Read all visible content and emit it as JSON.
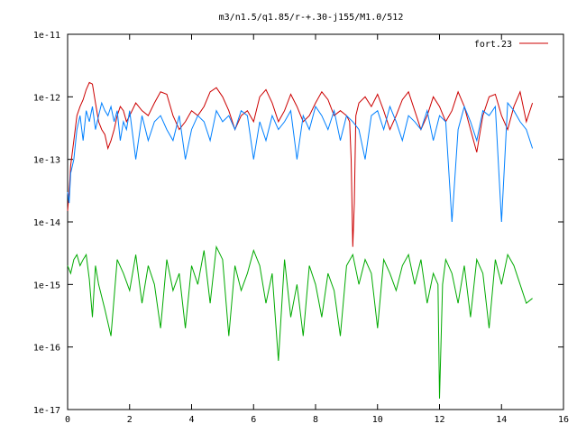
{
  "chart_data": {
    "type": "line",
    "title": "m3/n1.5/q1.85/r-+.30-j155/M1.0/512",
    "xlabel": "",
    "ylabel": "",
    "xlim": [
      0,
      16
    ],
    "ylim": [
      1e-17,
      1e-11
    ],
    "yscale": "log",
    "grid": false,
    "legend_position": "top-right",
    "x_ticks": [
      0,
      2,
      4,
      6,
      8,
      10,
      12,
      14,
      16
    ],
    "x_tick_labels": [
      "0",
      "2",
      "4",
      "6",
      "8",
      "10",
      "12",
      "14",
      "16"
    ],
    "y_ticks": [
      1e-17,
      1e-16,
      1e-15,
      1e-14,
      1e-13,
      1e-12,
      1e-11
    ],
    "y_tick_labels": [
      "1e-17",
      "1e-16",
      "1e-15",
      "1e-14",
      "1e-13",
      "1e-12",
      "1e-11"
    ],
    "series": [
      {
        "name": "fort.23",
        "color": "#cc0000",
        "x": [
          0.0,
          0.05,
          0.1,
          0.2,
          0.3,
          0.4,
          0.5,
          0.6,
          0.7,
          0.8,
          0.9,
          1.0,
          1.1,
          1.2,
          1.3,
          1.4,
          1.5,
          1.6,
          1.7,
          1.8,
          1.9,
          2.0,
          2.2,
          2.4,
          2.6,
          2.8,
          3.0,
          3.2,
          3.4,
          3.6,
          3.8,
          4.0,
          4.2,
          4.4,
          4.6,
          4.8,
          5.0,
          5.2,
          5.4,
          5.6,
          5.8,
          6.0,
          6.2,
          6.4,
          6.6,
          6.8,
          7.0,
          7.2,
          7.4,
          7.6,
          7.8,
          8.0,
          8.2,
          8.4,
          8.6,
          8.8,
          9.0,
          9.1,
          9.15,
          9.2,
          9.25,
          9.3,
          9.4,
          9.6,
          9.8,
          10.0,
          10.2,
          10.4,
          10.6,
          10.8,
          11.0,
          11.2,
          11.4,
          11.6,
          11.8,
          12.0,
          12.2,
          12.4,
          12.6,
          12.8,
          13.0,
          13.2,
          13.4,
          13.6,
          13.8,
          14.0,
          14.2,
          14.4,
          14.6,
          14.8,
          15.0
        ],
        "y": [
          1.5e-14,
          3e-14,
          8e-14,
          2e-13,
          5e-13,
          7e-13,
          9e-13,
          1.3e-12,
          1.7e-12,
          1.6e-12,
          8e-13,
          4e-13,
          3e-13,
          2.5e-13,
          1.5e-13,
          2e-13,
          3e-13,
          5e-13,
          7e-13,
          6e-13,
          4e-13,
          5e-13,
          8e-13,
          6e-13,
          5e-13,
          8e-13,
          1.2e-12,
          1.1e-12,
          5e-13,
          3e-13,
          4e-13,
          6e-13,
          5e-13,
          7e-13,
          1.2e-12,
          1.4e-12,
          1e-12,
          6e-13,
          3e-13,
          5e-13,
          6e-13,
          4e-13,
          1e-12,
          1.3e-12,
          8e-13,
          4e-13,
          6e-13,
          1.1e-12,
          7e-13,
          4e-13,
          5e-13,
          8e-13,
          1.2e-12,
          9e-13,
          5e-13,
          6e-13,
          5e-13,
          4e-13,
          1e-13,
          4e-15,
          2e-14,
          5e-13,
          8e-13,
          1e-12,
          7e-13,
          1.1e-12,
          6e-13,
          3e-13,
          5e-13,
          9e-13,
          1.2e-12,
          6e-13,
          3e-13,
          5e-13,
          1e-12,
          7e-13,
          4e-13,
          6e-13,
          1.2e-12,
          7e-13,
          3e-13,
          1.3e-13,
          5e-13,
          1e-12,
          1.1e-12,
          5e-13,
          3e-13,
          7e-13,
          1.2e-12,
          4e-13,
          8e-13
        ]
      },
      {
        "name": "",
        "color": "#0080ff",
        "x": [
          0.0,
          0.05,
          0.1,
          0.2,
          0.3,
          0.4,
          0.5,
          0.6,
          0.7,
          0.8,
          0.9,
          1.0,
          1.1,
          1.2,
          1.3,
          1.4,
          1.5,
          1.6,
          1.7,
          1.8,
          1.9,
          2.0,
          2.2,
          2.4,
          2.6,
          2.8,
          3.0,
          3.2,
          3.4,
          3.6,
          3.8,
          4.0,
          4.2,
          4.4,
          4.6,
          4.8,
          5.0,
          5.2,
          5.4,
          5.6,
          5.8,
          6.0,
          6.2,
          6.4,
          6.6,
          6.8,
          7.0,
          7.2,
          7.4,
          7.6,
          7.8,
          8.0,
          8.2,
          8.4,
          8.6,
          8.8,
          9.0,
          9.2,
          9.4,
          9.6,
          9.8,
          10.0,
          10.2,
          10.4,
          10.6,
          10.8,
          11.0,
          11.2,
          11.4,
          11.6,
          11.8,
          12.0,
          12.2,
          12.4,
          12.6,
          12.8,
          13.0,
          13.2,
          13.4,
          13.6,
          13.8,
          14.0,
          14.2,
          14.4,
          14.6,
          14.8,
          15.0
        ],
        "y": [
          3e-14,
          2e-14,
          6e-14,
          1e-13,
          3e-13,
          5e-13,
          2e-13,
          6e-13,
          4e-13,
          7e-13,
          3e-13,
          5e-13,
          8e-13,
          6e-13,
          5e-13,
          7e-13,
          4e-13,
          6e-13,
          2e-13,
          4e-13,
          3e-13,
          6e-13,
          1e-13,
          5e-13,
          2e-13,
          4e-13,
          5e-13,
          3e-13,
          2e-13,
          5e-13,
          1e-13,
          3e-13,
          5e-13,
          4e-13,
          2e-13,
          6e-13,
          4e-13,
          5e-13,
          3e-13,
          6e-13,
          5e-13,
          1e-13,
          4e-13,
          2e-13,
          5e-13,
          3e-13,
          4e-13,
          6e-13,
          1e-13,
          5e-13,
          3e-13,
          7e-13,
          5e-13,
          3e-13,
          6e-13,
          2e-13,
          5e-13,
          4e-13,
          3e-13,
          1e-13,
          5e-13,
          6e-13,
          3e-13,
          7e-13,
          4e-13,
          2e-13,
          5e-13,
          4e-13,
          3e-13,
          6e-13,
          2e-13,
          5e-13,
          4e-13,
          1e-14,
          3e-13,
          7e-13,
          4e-13,
          2e-13,
          6e-13,
          5e-13,
          7e-13,
          1e-14,
          8e-13,
          6e-13,
          4e-13,
          3e-13,
          1.5e-13
        ]
      },
      {
        "name": "",
        "color": "#00aa00",
        "x": [
          0.0,
          0.1,
          0.2,
          0.3,
          0.4,
          0.5,
          0.6,
          0.7,
          0.8,
          0.9,
          1.0,
          1.2,
          1.4,
          1.6,
          1.8,
          2.0,
          2.2,
          2.4,
          2.6,
          2.8,
          3.0,
          3.2,
          3.4,
          3.6,
          3.8,
          4.0,
          4.2,
          4.4,
          4.6,
          4.8,
          5.0,
          5.2,
          5.4,
          5.6,
          5.8,
          6.0,
          6.2,
          6.4,
          6.6,
          6.8,
          7.0,
          7.2,
          7.4,
          7.6,
          7.8,
          8.0,
          8.2,
          8.4,
          8.6,
          8.8,
          9.0,
          9.2,
          9.4,
          9.6,
          9.8,
          10.0,
          10.2,
          10.4,
          10.6,
          10.8,
          11.0,
          11.2,
          11.4,
          11.6,
          11.8,
          11.95,
          12.0,
          12.1,
          12.2,
          12.4,
          12.6,
          12.8,
          13.0,
          13.2,
          13.4,
          13.6,
          13.8,
          14.0,
          14.2,
          14.4,
          14.6,
          14.8,
          15.0
        ],
        "y": [
          2e-15,
          1.5e-15,
          2.5e-15,
          3e-15,
          2e-15,
          2.5e-15,
          3e-15,
          1.2e-15,
          3e-16,
          2e-15,
          1e-15,
          4e-16,
          1.5e-16,
          2.5e-15,
          1.5e-15,
          8e-16,
          3e-15,
          5e-16,
          2e-15,
          1e-15,
          2e-16,
          2.5e-15,
          8e-16,
          1.5e-15,
          2e-16,
          2e-15,
          1e-15,
          3.5e-15,
          5e-16,
          4e-15,
          2.5e-15,
          1.5e-16,
          2e-15,
          8e-16,
          1.5e-15,
          3.5e-15,
          2e-15,
          5e-16,
          1.5e-15,
          6e-17,
          2.5e-15,
          3e-16,
          1e-15,
          1.5e-16,
          2e-15,
          1e-15,
          3e-16,
          1.5e-15,
          8e-16,
          1.5e-16,
          2e-15,
          3e-15,
          1e-15,
          2.5e-15,
          1.5e-15,
          2e-16,
          2.5e-15,
          1.5e-15,
          8e-16,
          2e-15,
          3e-15,
          1e-15,
          2.5e-15,
          5e-16,
          1.5e-15,
          1e-15,
          1.5e-17,
          1e-15,
          2.5e-15,
          1.5e-15,
          5e-16,
          2e-15,
          3e-16,
          2.5e-15,
          1.5e-15,
          2e-16,
          2.5e-15,
          1e-15,
          3e-15,
          2e-15,
          1e-15,
          5e-16,
          6e-16
        ]
      }
    ]
  }
}
